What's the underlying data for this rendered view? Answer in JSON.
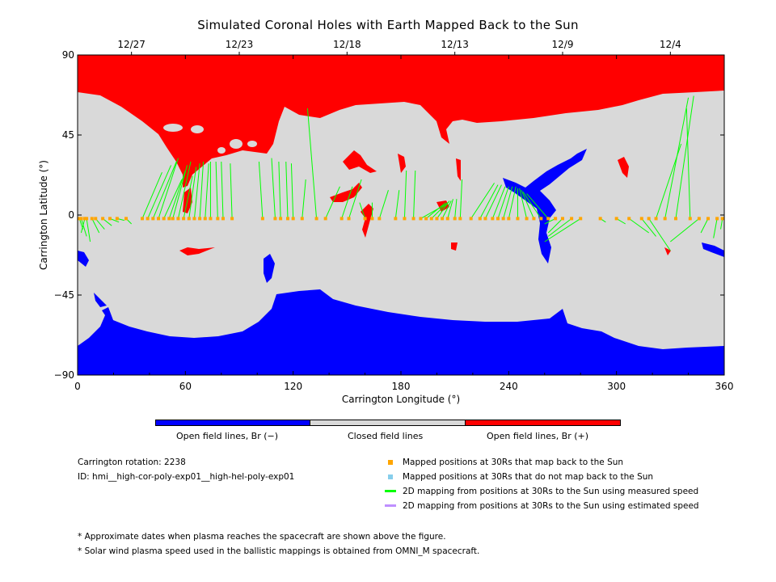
{
  "chart_data": {
    "type": "map",
    "title": "Simulated Coronal Holes with Earth Mapped Back to the Sun",
    "xlabel": "Carrington Longitude (°)",
    "ylabel": "Carrington Latitude (°)",
    "xlim": [
      0,
      360
    ],
    "ylim": [
      -90,
      90
    ],
    "xticks": [
      0,
      60,
      120,
      180,
      240,
      300,
      360
    ],
    "yticks": [
      90,
      45,
      0,
      -45,
      -90
    ],
    "ytick_labels": [
      "90",
      "45",
      "0",
      "−45",
      "−90"
    ],
    "top_dates": [
      {
        "label": "12/27",
        "lon": 30
      },
      {
        "label": "12/23",
        "lon": 90
      },
      {
        "label": "12/18",
        "lon": 150
      },
      {
        "label": "12/13",
        "lon": 210
      },
      {
        "label": "12/9",
        "lon": 270
      },
      {
        "label": "12/4",
        "lon": 330
      }
    ],
    "colors": {
      "open_negative": "#0000ff",
      "closed": "#d9d9d9",
      "open_positive": "#ff0000",
      "mapped": "#ffa500",
      "unmapped": "#87ceeb",
      "measured": "#00ff00",
      "estimated": "#bf8fff"
    },
    "mappings": [
      [
        1,
        -2,
        3,
        -8
      ],
      [
        2,
        -2,
        5,
        -12
      ],
      [
        4,
        -2,
        2,
        -10
      ],
      [
        5,
        -2,
        7,
        -15
      ],
      [
        8,
        -2,
        12,
        -10
      ],
      [
        10,
        -2,
        15,
        -8
      ],
      [
        14,
        -2,
        19,
        -6
      ],
      [
        18,
        -2,
        23,
        -4
      ],
      [
        22,
        -2,
        26,
        -3
      ],
      [
        27,
        -2,
        30,
        -5
      ],
      [
        36,
        -2,
        47,
        24
      ],
      [
        39,
        -2,
        52,
        28
      ],
      [
        42,
        -2,
        55,
        30
      ],
      [
        45,
        -2,
        56,
        32
      ],
      [
        48,
        -2,
        58,
        20
      ],
      [
        51,
        -2,
        60,
        25
      ],
      [
        53,
        -2,
        61,
        28
      ],
      [
        56,
        -2,
        63,
        30
      ],
      [
        59,
        -2,
        64,
        22
      ],
      [
        62,
        -2,
        66,
        27
      ],
      [
        65,
        -2,
        68,
        29
      ],
      [
        68,
        -2,
        70,
        30
      ],
      [
        71,
        -2,
        73,
        29
      ],
      [
        74,
        -2,
        74,
        30
      ],
      [
        78,
        -2,
        77,
        30
      ],
      [
        81,
        -2,
        80,
        30
      ],
      [
        86,
        -2,
        85,
        29
      ],
      [
        103,
        -2,
        101,
        30
      ],
      [
        110,
        -2,
        108,
        32
      ],
      [
        113,
        -2,
        112,
        30
      ],
      [
        117,
        -2,
        116,
        30
      ],
      [
        120,
        -2,
        119,
        29
      ],
      [
        125,
        -2,
        127,
        20
      ],
      [
        133,
        -2,
        128,
        60
      ],
      [
        138,
        -2,
        146,
        16
      ],
      [
        147,
        -2,
        153,
        16
      ],
      [
        151,
        -2,
        158,
        20
      ],
      [
        160,
        -2,
        157,
        7
      ],
      [
        164,
        -2,
        164,
        7
      ],
      [
        168,
        -2,
        173,
        14
      ],
      [
        177,
        -2,
        179,
        14
      ],
      [
        182,
        -2,
        183,
        25
      ],
      [
        187,
        -2,
        188,
        25
      ],
      [
        191,
        -2,
        205,
        6
      ],
      [
        194,
        -2,
        205,
        7
      ],
      [
        197,
        -2,
        206,
        7
      ],
      [
        200,
        -2,
        207,
        8
      ],
      [
        203,
        -2,
        208,
        8
      ],
      [
        206,
        -2,
        209,
        9
      ],
      [
        210,
        -2,
        211,
        9
      ],
      [
        213,
        -2,
        214,
        20
      ],
      [
        219,
        -2,
        232,
        18
      ],
      [
        224,
        -2,
        234,
        17
      ],
      [
        227,
        -2,
        236,
        17
      ],
      [
        231,
        -2,
        238,
        16
      ],
      [
        234,
        -2,
        240,
        16
      ],
      [
        237,
        -2,
        242,
        16
      ],
      [
        240,
        -2,
        244,
        16
      ],
      [
        245,
        -2,
        245,
        15
      ],
      [
        250,
        -2,
        246,
        15
      ],
      [
        254,
        -2,
        247,
        14
      ],
      [
        258,
        -2,
        248,
        13
      ],
      [
        262,
        -2,
        250,
        12
      ],
      [
        266,
        -2,
        260,
        -5
      ],
      [
        270,
        -2,
        262,
        -10
      ],
      [
        275,
        -2,
        262,
        -12
      ],
      [
        280,
        -2,
        260,
        -15
      ],
      [
        291,
        -2,
        294,
        -4
      ],
      [
        300,
        -2,
        305,
        -5
      ],
      [
        307,
        -2,
        318,
        -10
      ],
      [
        314,
        -2,
        322,
        -12
      ],
      [
        318,
        -2,
        330,
        -20
      ],
      [
        322,
        -2,
        336,
        40
      ],
      [
        327,
        -2,
        340,
        66
      ],
      [
        333,
        -2,
        343,
        67
      ],
      [
        341,
        -2,
        339,
        60
      ],
      [
        346,
        -2,
        330,
        -15
      ],
      [
        351,
        -2,
        347,
        -10
      ],
      [
        356,
        -2,
        354,
        -13
      ],
      [
        359,
        -2,
        358,
        -8
      ]
    ]
  },
  "colorbar": {
    "open_negative": "Open field lines, Br (−)",
    "closed": "Closed field lines",
    "open_positive": "Open field lines, Br (+)"
  },
  "info": {
    "rotation": "Carrington rotation: 2238",
    "id": "ID: hmi__high-cor-poly-exp01__high-hel-poly-exp01"
  },
  "legend": {
    "mapped": "Mapped positions at 30Rs that map back to the Sun",
    "unmapped": "Mapped positions at 30Rs that do not map back to the Sun",
    "measured": "2D mapping from positions at 30Rs to the Sun using measured speed",
    "estimated": "2D mapping from positions at 30Rs to the Sun using estimated speed"
  },
  "notes": {
    "note1": "* Approximate dates when plasma reaches the spacecraft are shown above the figure.",
    "note2": "* Solar wind plasma speed used in the ballistic mappings is obtained from OMNI_M spacecraft."
  }
}
